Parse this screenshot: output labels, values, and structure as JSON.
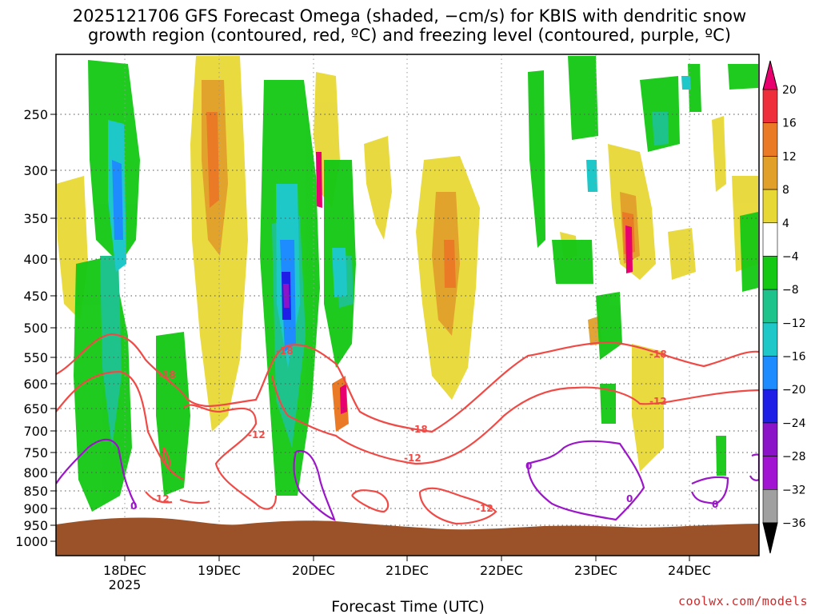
{
  "title_line1": "2025121706 GFS Forecast Omega (shaded, −cm/s) for KBIS with dendritic snow",
  "title_line2": "growth region (contoured, red, ºC) and freezing level (contoured, purple, ºC)",
  "credit": "coolwx.com/models",
  "chart_data": {
    "type": "heatmap",
    "xlabel": "Forecast Time (UTC)",
    "ylabel": "",
    "x_ticks": [
      "18DEC",
      "19DEC",
      "20DEC",
      "21DEC",
      "22DEC",
      "23DEC",
      "24DEC"
    ],
    "x_year_label": "2025",
    "y_ticks": [
      250,
      300,
      350,
      400,
      450,
      500,
      550,
      600,
      650,
      700,
      750,
      800,
      850,
      900,
      950,
      1000
    ],
    "y_range": [
      1050,
      200
    ],
    "y_scale": "log",
    "grid": true,
    "colorbar": {
      "labels": [
        "20",
        "16",
        "12",
        "8",
        "4",
        "−4",
        "−8",
        "−12",
        "−16",
        "−20",
        "−24",
        "−28",
        "−32",
        "−36"
      ],
      "colors": [
        "#e8006e",
        "#ef2e3c",
        "#ea7a26",
        "#e0a02a",
        "#e8d836",
        "#ffffff",
        "#14c814",
        "#1ec38c",
        "#1ec8c8",
        "#1e8cff",
        "#1e1ee6",
        "#8c14c8",
        "#a014d2",
        "#a0a0a0",
        "#000000"
      ]
    },
    "contour_labels": {
      "dgz_red": [
        "-18",
        "-12"
      ],
      "freezing_purple": [
        "0"
      ]
    },
    "colors": {
      "terrain": "#9b5228",
      "dgz_contour": "#f04a46",
      "freezing_contour": "#9a16c8"
    }
  }
}
